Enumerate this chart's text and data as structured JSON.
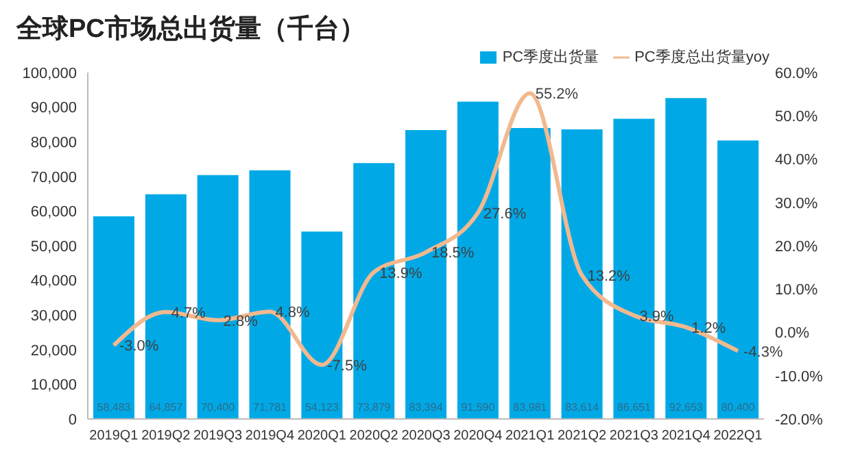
{
  "chart_data": {
    "type": "bar",
    "title": "全球PC市场总出货量（千台）",
    "categories": [
      "2019Q1",
      "2019Q2",
      "2019Q3",
      "2019Q4",
      "2020Q1",
      "2020Q2",
      "2020Q3",
      "2020Q4",
      "2021Q1",
      "2021Q2",
      "2021Q3",
      "2021Q4",
      "2022Q1"
    ],
    "series": [
      {
        "name": "PC季度出货量",
        "color": "#00a9e6",
        "values": [
          58483,
          64857,
          70400,
          71781,
          54123,
          73879,
          83394,
          91590,
          83981,
          83614,
          86651,
          92653,
          80400
        ],
        "value_labels": [
          "58,483",
          "64,857",
          "70,400",
          "71,781",
          "54,123",
          "73,879",
          "83,394",
          "91,590",
          "83,981",
          "83,614",
          "86,651",
          "92,653",
          "80,400"
        ]
      },
      {
        "name": "PC季度总出货量yoy",
        "type": "line",
        "axis": "y2",
        "color": "#f2b98f",
        "values": [
          -3.0,
          4.7,
          2.8,
          4.8,
          -7.5,
          13.9,
          18.5,
          27.6,
          55.2,
          13.2,
          3.9,
          1.2,
          -4.3
        ],
        "value_labels": [
          "-3.0%",
          "4.7%",
          "2.8%",
          "4.8%",
          "-7.5%",
          "13.9%",
          "18.5%",
          "27.6%",
          "55.2%",
          "13.2%",
          "3.9%",
          "1.2%",
          "-4.3%"
        ]
      }
    ],
    "ylim": [
      0,
      100000
    ],
    "yticks": [
      0,
      {
        "value": 10000,
        "label": "10,000"
      },
      {
        "value": 20000,
        "label": "20,000"
      },
      {
        "value": 30000,
        "label": "30,000"
      },
      {
        "value": 40000,
        "label": "40,000"
      },
      {
        "value": 50000,
        "label": "50,000"
      },
      {
        "value": 60000,
        "label": "60,000"
      },
      {
        "value": 70000,
        "label": "70,000"
      },
      {
        "value": 80000,
        "label": "80,000"
      },
      {
        "value": 90000,
        "label": "90,000"
      },
      {
        "value": 100000,
        "label": "100,000"
      }
    ],
    "y2lim": [
      -20,
      60
    ],
    "y2ticks": [
      {
        "value": -20,
        "label": "-20.0%"
      },
      {
        "value": -10,
        "label": "-10.0%"
      },
      {
        "value": 0,
        "label": "0.0%"
      },
      {
        "value": 10,
        "label": "10.0%"
      },
      {
        "value": 20,
        "label": "20.0%"
      },
      {
        "value": 30,
        "label": "30.0%"
      },
      {
        "value": 40,
        "label": "40.0%"
      },
      {
        "value": 50,
        "label": "50.0%"
      },
      {
        "value": 60,
        "label": "60.0%"
      }
    ],
    "legend": "top right",
    "grid": false,
    "marker": "none"
  }
}
